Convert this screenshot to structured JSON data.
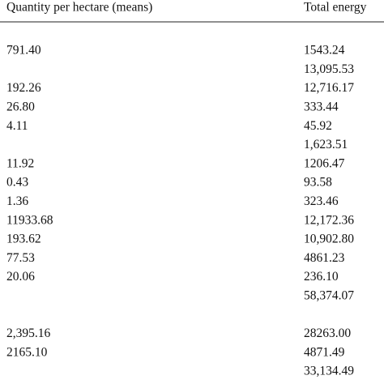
{
  "table": {
    "header": [
      "Quantity per hectare (means)",
      "Total energy"
    ],
    "rows": [
      [
        "791.40",
        "1543.24"
      ],
      [
        null,
        "13,095.53"
      ],
      [
        "192.26",
        "12,716.17"
      ],
      [
        "26.80",
        "333.44"
      ],
      [
        "4.11",
        "45.92"
      ],
      [
        null,
        "1,623.51"
      ],
      [
        "11.92",
        "1206.47"
      ],
      [
        "0.43",
        "93.58"
      ],
      [
        "1.36",
        "323.46"
      ],
      [
        "11933.68",
        "12,172.36"
      ],
      [
        "193.62",
        "10,902.80"
      ],
      [
        "77.53",
        "4861.23"
      ],
      [
        "20.06",
        "236.10"
      ],
      [
        null,
        "58,374.07"
      ],
      [
        null,
        null
      ],
      [
        "2,395.16",
        "28263.00"
      ],
      [
        "2165.10",
        "4871.49"
      ],
      [
        null,
        "33,134.49"
      ]
    ]
  }
}
